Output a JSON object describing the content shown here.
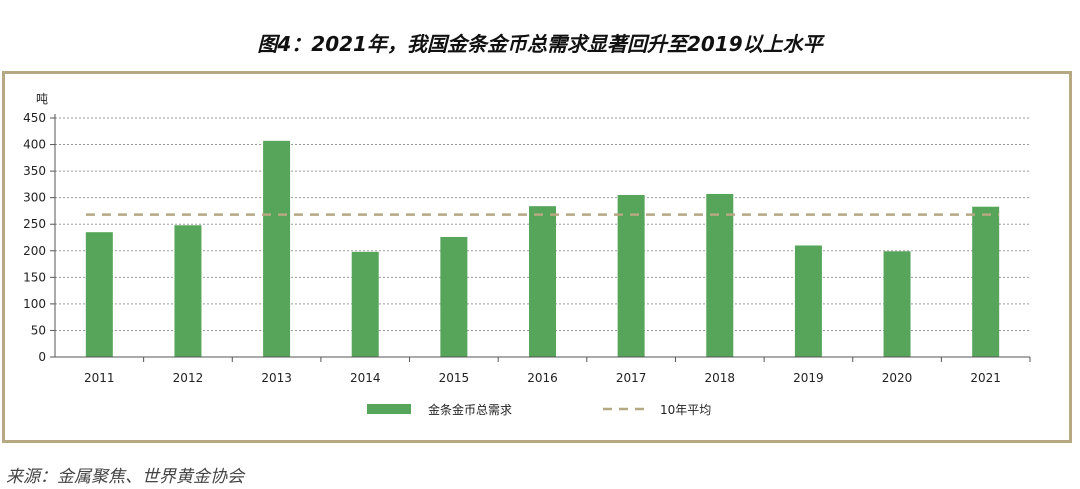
{
  "page": {
    "title": "图4：2021年，我国金条金币总需求显著回升至2019以上水平",
    "source": "来源：金属聚焦、世界黄金协会"
  },
  "chart_data": {
    "type": "bar",
    "ylabel": "吨",
    "ylim": [
      0,
      450
    ],
    "yticks": [
      0,
      50,
      100,
      150,
      200,
      250,
      300,
      350,
      400,
      450
    ],
    "categories": [
      "2011",
      "2012",
      "2013",
      "2014",
      "2015",
      "2016",
      "2017",
      "2018",
      "2019",
      "2020",
      "2021"
    ],
    "series": [
      {
        "name": "金条金币总需求",
        "values": [
          235,
          248,
          407,
          198,
          226,
          284,
          305,
          307,
          210,
          199,
          283
        ],
        "color": "#57a55a"
      }
    ],
    "reference_lines": [
      {
        "name": "10年平均",
        "value": 268,
        "style": "dashed",
        "color": "#b5a882"
      }
    ],
    "grid": "horizontal dashed",
    "legend_position": "bottom"
  }
}
